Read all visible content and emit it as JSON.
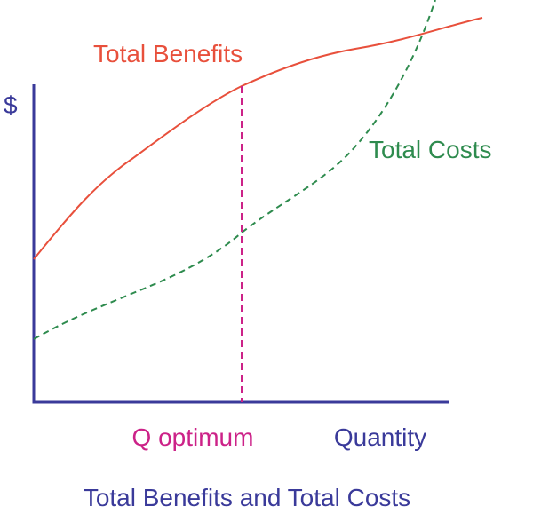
{
  "labels": {
    "benefits": "Total Benefits",
    "y_axis": "$",
    "costs": "Total Costs",
    "optimum": "Q optimum",
    "x_axis": "Quantity"
  },
  "caption": "Total Benefits and Total Costs"
}
